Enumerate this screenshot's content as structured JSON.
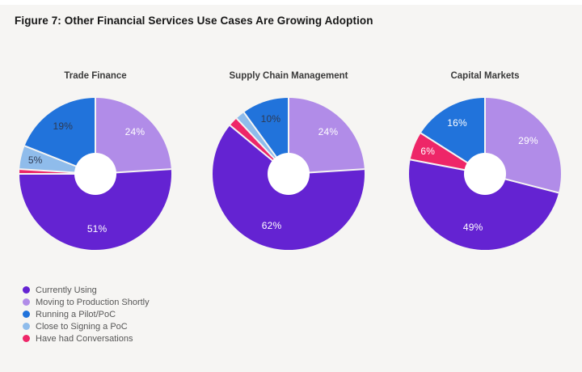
{
  "page": {
    "background": "#f6f5f3",
    "title": "Figure 7: Other Financial Services Use Cases Are Growing Adoption"
  },
  "colors": {
    "currently_using": "#6423d2",
    "moving_to_production": "#b18ce8",
    "running_pilot": "#2173db",
    "close_to_signing": "#8fbceb",
    "have_had_conversations": "#ee2668",
    "label_light": "#ffffff",
    "label_dark": "#2e3a52",
    "hole": "#ffffff"
  },
  "legend": {
    "position": "bottom-left",
    "items": [
      {
        "label": "Currently Using",
        "color_key": "currently_using"
      },
      {
        "label": "Moving to Production Shortly",
        "color_key": "moving_to_production"
      },
      {
        "label": "Running a Pilot/PoC",
        "color_key": "running_pilot"
      },
      {
        "label": "Close to Signing a PoC",
        "color_key": "close_to_signing"
      },
      {
        "label": "Have had Conversations",
        "color_key": "have_had_conversations"
      }
    ]
  },
  "chart_data": [
    {
      "type": "pie",
      "subtype": "donut",
      "title": "Trade Finance",
      "slices": [
        {
          "category": "Moving to Production Shortly",
          "value": 24,
          "color_key": "moving_to_production",
          "label": "24%",
          "label_style": "light"
        },
        {
          "category": "Currently Using",
          "value": 51,
          "color_key": "currently_using",
          "label": "51%",
          "label_style": "light"
        },
        {
          "category": "Have had Conversations",
          "value": 1,
          "color_key": "have_had_conversations",
          "label": "",
          "label_style": "light"
        },
        {
          "category": "Close to Signing a PoC",
          "value": 5,
          "color_key": "close_to_signing",
          "label": "5%",
          "label_style": "dark"
        },
        {
          "category": "Running a Pilot/PoC",
          "value": 19,
          "color_key": "running_pilot",
          "label": "19%",
          "label_style": "dark"
        }
      ]
    },
    {
      "type": "pie",
      "subtype": "donut",
      "title": "Supply Chain Management",
      "slices": [
        {
          "category": "Moving to Production Shortly",
          "value": 24,
          "color_key": "moving_to_production",
          "label": "24%",
          "label_style": "light"
        },
        {
          "category": "Currently Using",
          "value": 62,
          "color_key": "currently_using",
          "label": "62%",
          "label_style": "light"
        },
        {
          "category": "Have had Conversations",
          "value": 2,
          "color_key": "have_had_conversations",
          "label": "",
          "label_style": "light"
        },
        {
          "category": "Close to Signing a PoC",
          "value": 2,
          "color_key": "close_to_signing",
          "label": "",
          "label_style": "dark"
        },
        {
          "category": "Running a Pilot/PoC",
          "value": 10,
          "color_key": "running_pilot",
          "label": "10%",
          "label_style": "dark"
        }
      ]
    },
    {
      "type": "pie",
      "subtype": "donut",
      "title": "Capital Markets",
      "slices": [
        {
          "category": "Moving to Production Shortly",
          "value": 29,
          "color_key": "moving_to_production",
          "label": "29%",
          "label_style": "light"
        },
        {
          "category": "Currently Using",
          "value": 49,
          "color_key": "currently_using",
          "label": "49%",
          "label_style": "light"
        },
        {
          "category": "Have had Conversations",
          "value": 6,
          "color_key": "have_had_conversations",
          "label": "6%",
          "label_style": "light"
        },
        {
          "category": "Running a Pilot/PoC",
          "value": 16,
          "color_key": "running_pilot",
          "label": "16%",
          "label_style": "light"
        }
      ]
    }
  ]
}
